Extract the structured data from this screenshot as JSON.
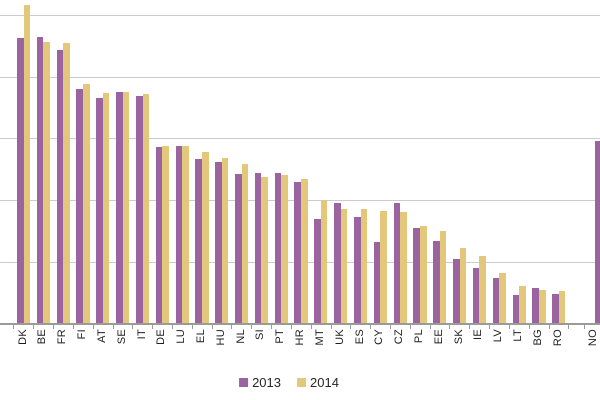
{
  "chart_data": {
    "type": "bar",
    "title": "",
    "note": "Grouped bar chart cropped at left/top: y-axis tick labels are not visible; values estimated assuming 5 units per horizontal gridline (5 gridlines visible). NO is separated by a gap after RO and its 2014 bar is cut off by the right edge.",
    "categories": [
      "DK",
      "BE",
      "FR",
      "FI",
      "AT",
      "SE",
      "IT",
      "DE",
      "LU",
      "EL",
      "HU",
      "NL",
      "SI",
      "PT",
      "HR",
      "MT",
      "UK",
      "ES",
      "CY",
      "CZ",
      "PL",
      "EE",
      "SK",
      "IE",
      "LV",
      "LT",
      "BG",
      "RO",
      "NO"
    ],
    "series": [
      {
        "name": "2013",
        "color": "#9B64A0",
        "values": [
          23.1,
          23.2,
          22.2,
          19.0,
          18.3,
          18.8,
          18.4,
          14.3,
          14.4,
          13.3,
          13.1,
          12.1,
          12.2,
          12.2,
          11.5,
          8.5,
          9.8,
          8.6,
          6.6,
          9.8,
          7.7,
          6.7,
          5.2,
          4.5,
          3.7,
          2.3,
          2.9,
          2.4,
          14.8
        ]
      },
      {
        "name": "2014",
        "color": "#E3C77B",
        "values": [
          25.8,
          22.8,
          22.7,
          19.4,
          18.7,
          18.8,
          18.6,
          14.4,
          14.4,
          13.9,
          13.4,
          12.9,
          11.9,
          12.0,
          11.7,
          10.0,
          9.3,
          9.3,
          9.1,
          9.0,
          7.9,
          7.5,
          6.1,
          5.5,
          4.1,
          3.0,
          2.7,
          2.6,
          null
        ]
      }
    ],
    "ylim": [
      0,
      26.2
    ],
    "gridline_interval": 5,
    "gridline_count": 5,
    "grid": "horizontal-only",
    "legend_position": "bottom-center",
    "x_tick_labels_rotated_90": true
  },
  "colors": {
    "background": "#ffffff",
    "gridline": "#cccccc",
    "axis": "#9a9a9a",
    "label_text": "#1f1f1f",
    "legend_text": "#262626",
    "series_2013": "#9B64A0",
    "series_2014": "#E3C77B"
  }
}
